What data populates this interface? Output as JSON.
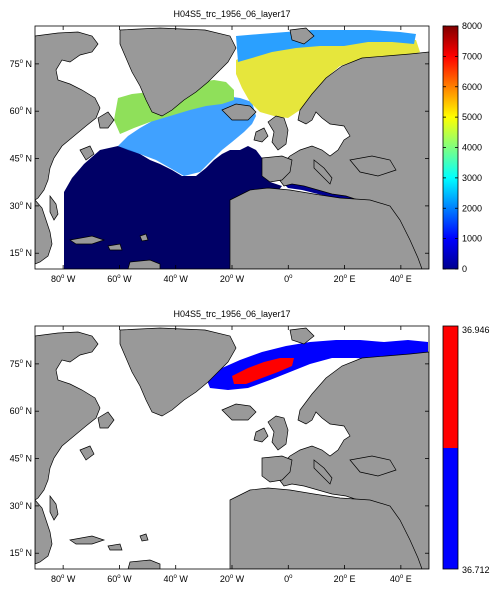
{
  "figure": {
    "panels": [
      {
        "id": "top",
        "title": "H04S5_trc_1956_06_layer17",
        "lon_ticks": [
          -80,
          -60,
          -40,
          -20,
          0,
          20,
          40
        ],
        "lat_ticks": [
          15,
          30,
          45,
          60,
          75
        ],
        "lon_tick_labels": [
          {
            "num": "80",
            "sup": "o",
            "dir": " W"
          },
          {
            "num": "60",
            "sup": "o",
            "dir": " W"
          },
          {
            "num": "40",
            "sup": "o",
            "dir": " W"
          },
          {
            "num": "20",
            "sup": "o",
            "dir": " W"
          },
          {
            "num": "0",
            "sup": "o",
            "dir": ""
          },
          {
            "num": "20",
            "sup": "o",
            "dir": " E"
          },
          {
            "num": "40",
            "sup": "o",
            "dir": " E"
          }
        ],
        "lat_tick_labels": [
          {
            "num": "15",
            "sup": "o",
            "dir": " N"
          },
          {
            "num": "30",
            "sup": "o",
            "dir": " N"
          },
          {
            "num": "45",
            "sup": "o",
            "dir": " N"
          },
          {
            "num": "60",
            "sup": "o",
            "dir": " N"
          },
          {
            "num": "75",
            "sup": "o",
            "dir": " N"
          }
        ],
        "colorbar": {
          "type": "continuous",
          "colormap": "jet",
          "range": [
            0,
            8000
          ],
          "ticks": [
            "0",
            "1000",
            "2000",
            "3000",
            "4000",
            "5000",
            "6000",
            "7000",
            "8000"
          ]
        }
      },
      {
        "id": "bottom",
        "title": "H04S5_trc_1956_06_layer17",
        "lon_ticks": [
          -80,
          -60,
          -40,
          -20,
          0,
          20,
          40
        ],
        "lat_ticks": [
          15,
          30,
          45,
          60,
          75
        ],
        "lon_tick_labels": [
          {
            "num": "80",
            "sup": "o",
            "dir": " W"
          },
          {
            "num": "60",
            "sup": "o",
            "dir": " W"
          },
          {
            "num": "40",
            "sup": "o",
            "dir": " W"
          },
          {
            "num": "20",
            "sup": "o",
            "dir": " W"
          },
          {
            "num": "0",
            "sup": "o",
            "dir": ""
          },
          {
            "num": "20",
            "sup": "o",
            "dir": " E"
          },
          {
            "num": "40",
            "sup": "o",
            "dir": " E"
          }
        ],
        "lat_tick_labels": [
          {
            "num": "15",
            "sup": "o",
            "dir": " N"
          },
          {
            "num": "30",
            "sup": "o",
            "dir": " N"
          },
          {
            "num": "45",
            "sup": "o",
            "dir": " N"
          },
          {
            "num": "60",
            "sup": "o",
            "dir": " N"
          },
          {
            "num": "75",
            "sup": "o",
            "dir": " N"
          }
        ],
        "colorbar": {
          "type": "two-class",
          "classes": [
            {
              "color": "#0000ff"
            },
            {
              "color": "#ff0000"
            }
          ],
          "min_label": "36.712",
          "max_label": "36.946"
        }
      }
    ],
    "colors": {
      "land": "#999999",
      "nodata": "#ffffff",
      "coastline": "#000000"
    }
  }
}
